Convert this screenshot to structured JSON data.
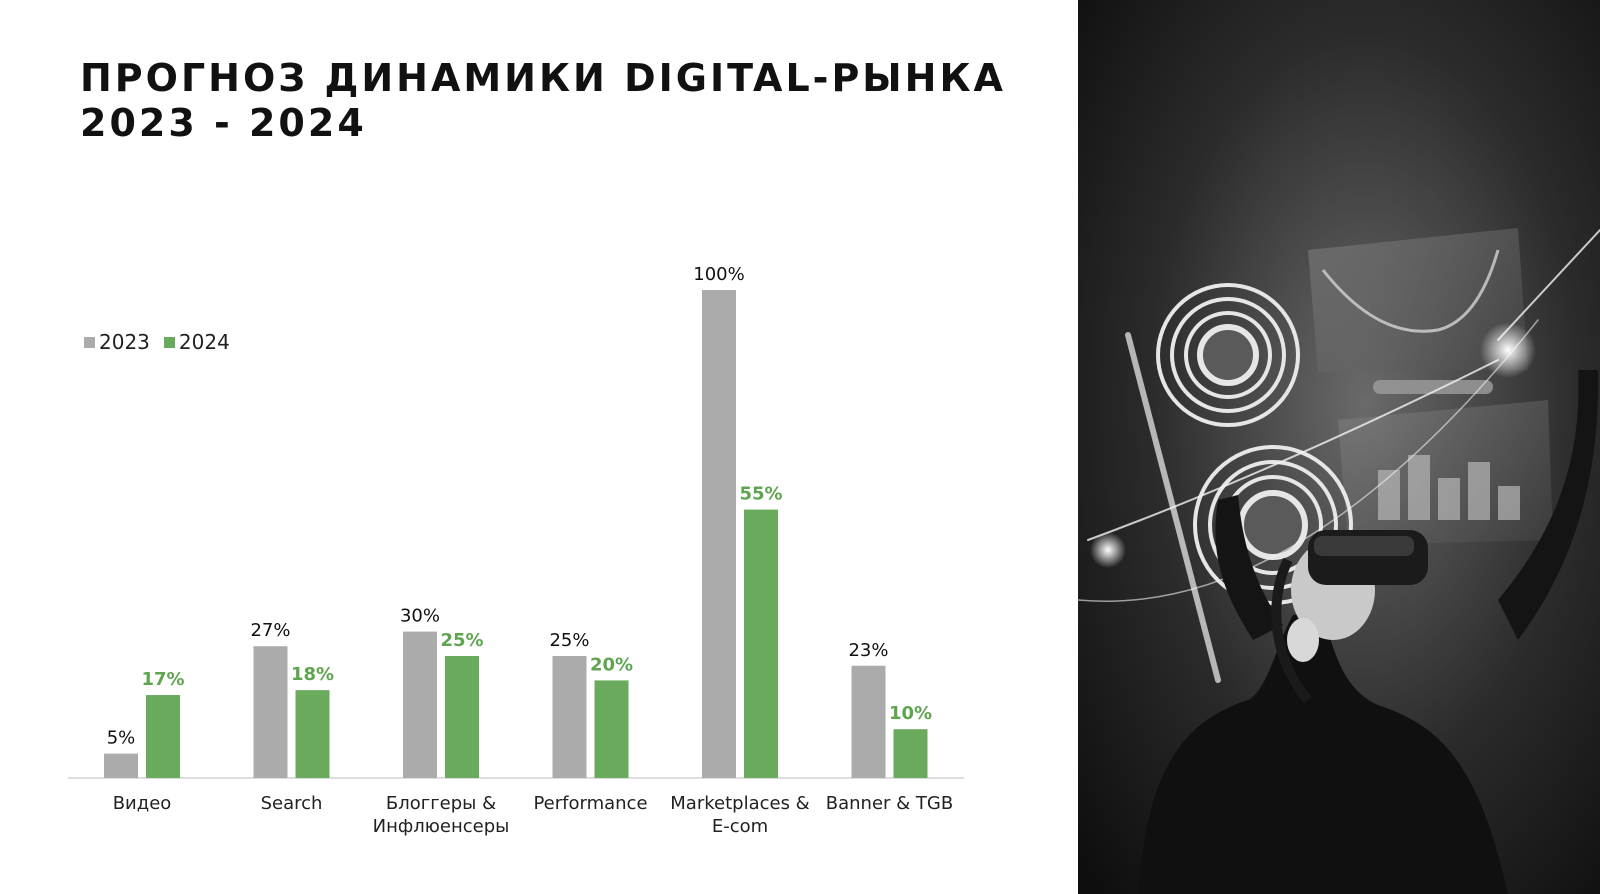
{
  "title": {
    "line1": "ПРОГНОЗ ДИНАМИКИ DIGITAL-РЫНКА",
    "line2": "2023 - 2024"
  },
  "colors": {
    "series_2023": "#ababab",
    "series_2024": "#6aaa5c",
    "label_2024": "#5fa550",
    "text": "#111111"
  },
  "chart_data": {
    "type": "bar",
    "categories": [
      [
        "Видео"
      ],
      [
        "Search"
      ],
      [
        "Блоггеры &",
        "Инфлюенсеры"
      ],
      [
        "Performance"
      ],
      [
        "Marketplaces &",
        "E-com"
      ],
      [
        "Banner & TGB"
      ]
    ],
    "series": [
      {
        "name": "2023",
        "values": [
          5,
          27,
          30,
          25,
          100,
          23
        ],
        "labels": [
          "5%",
          "27%",
          "30%",
          "25%",
          "100%",
          "23%"
        ]
      },
      {
        "name": "2024",
        "values": [
          17,
          18,
          25,
          20,
          55,
          10
        ],
        "labels": [
          "17%",
          "18%",
          "25%",
          "20%",
          "55%",
          "10%"
        ]
      }
    ],
    "ylim": [
      0,
      100
    ],
    "legend": "top-left",
    "grid": false
  }
}
